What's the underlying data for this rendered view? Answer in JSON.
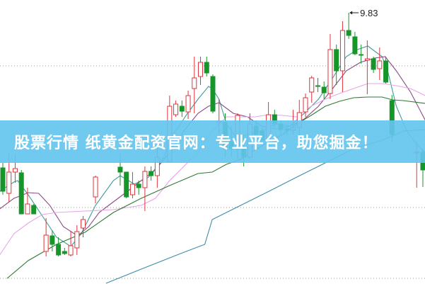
{
  "banner": {
    "text": "股票行情 纸黄金配资官网：专业平台，助您掘金！"
  },
  "chart_data": {
    "type": "candlestick",
    "title": "",
    "xlabel": "",
    "ylabel": "",
    "ylim": [
      6.0,
      10.0
    ],
    "xlim": [
      0,
      68
    ],
    "grid": {
      "horizontal_dotted": true,
      "levels": [
        9.08,
        8.08,
        7.08,
        6.08
      ]
    },
    "high_annotation": {
      "label": "9.83",
      "day": 56,
      "price": 9.83
    },
    "colors": {
      "up": "#e0343a",
      "down": "#16962a",
      "ma5": "#3d9c9a",
      "ma10": "#8c4a86",
      "ma20": "#e6a6e6",
      "ma30": "#2f7a34",
      "ma60": "#3a8cab",
      "grid": "#999999",
      "banner": "#64c4ee"
    },
    "candles_fields": [
      "day",
      "open",
      "high",
      "low",
      "close"
    ],
    "candles": [
      [
        0,
        7.64,
        7.71,
        7.26,
        7.31
      ],
      [
        1,
        7.28,
        7.86,
        7.16,
        7.58
      ],
      [
        2,
        7.58,
        7.83,
        7.43,
        7.63
      ],
      [
        3,
        7.57,
        7.61,
        6.99,
        6.99
      ],
      [
        4,
        6.99,
        7.36,
        6.99,
        7.13
      ],
      [
        5,
        7.11,
        7.13,
        6.99,
        6.99
      ],
      [
        7,
        6.46,
        6.93,
        6.39,
        6.69
      ],
      [
        8,
        6.68,
        6.76,
        6.46,
        6.56
      ],
      [
        9,
        6.56,
        6.66,
        6.39,
        6.41
      ],
      [
        10,
        6.46,
        6.51,
        6.41,
        6.43
      ],
      [
        11,
        6.41,
        6.75,
        6.39,
        6.54
      ],
      [
        12,
        6.51,
        6.83,
        6.41,
        6.74
      ],
      [
        13,
        6.79,
        6.96,
        6.66,
        6.91
      ],
      [
        15,
        7.23,
        7.53,
        7.14,
        7.51
      ],
      [
        19,
        7.65,
        7.84,
        7.39,
        7.58
      ],
      [
        20,
        7.58,
        7.58,
        7.21,
        7.23
      ],
      [
        21,
        7.26,
        7.58,
        7.21,
        7.41
      ],
      [
        22,
        7.41,
        7.46,
        7.26,
        7.36
      ],
      [
        23,
        7.36,
        7.66,
        7.03,
        7.59
      ],
      [
        24,
        7.59,
        7.66,
        7.46,
        7.53
      ],
      [
        25,
        7.53,
        7.96,
        7.36,
        7.79
      ],
      [
        27,
        7.73,
        8.66,
        7.73,
        8.51
      ],
      [
        28,
        8.39,
        8.59,
        8.36,
        8.54
      ],
      [
        29,
        8.51,
        8.59,
        8.36,
        8.44
      ],
      [
        30,
        8.43,
        8.73,
        8.33,
        8.66
      ],
      [
        31,
        8.76,
        9.21,
        8.41,
        8.91
      ],
      [
        32,
        8.93,
        9.21,
        8.81,
        9.13
      ],
      [
        33,
        9.13,
        9.21,
        8.93,
        8.98
      ],
      [
        34,
        8.93,
        8.96,
        8.41,
        8.44
      ],
      [
        35,
        8.28,
        8.61,
        8.11,
        8.3
      ],
      [
        36,
        8.28,
        8.41,
        7.79,
        7.91
      ],
      [
        37,
        8.01,
        8.23,
        7.79,
        7.91
      ],
      [
        38,
        7.91,
        8.41,
        7.76,
        8.38
      ],
      [
        39,
        7.91,
        8.11,
        7.66,
        7.79
      ],
      [
        40,
        7.79,
        8.41,
        7.76,
        8.26
      ],
      [
        41,
        8.23,
        8.31,
        7.91,
        8.11
      ],
      [
        42,
        8.16,
        8.21,
        8.03,
        8.03
      ],
      [
        43,
        7.98,
        8.57,
        7.91,
        8.39
      ],
      [
        44,
        8.39,
        8.46,
        8.21,
        8.26
      ],
      [
        45,
        8.26,
        8.31,
        8.11,
        8.18
      ],
      [
        46,
        8.19,
        8.26,
        8.11,
        8.17
      ],
      [
        47,
        8.17,
        8.46,
        8.11,
        8.21
      ],
      [
        48,
        8.21,
        8.6,
        8.06,
        8.42
      ],
      [
        49,
        8.43,
        8.69,
        8.36,
        8.63
      ],
      [
        50,
        8.71,
        8.94,
        8.56,
        8.91
      ],
      [
        51,
        8.8,
        8.91,
        8.71,
        8.79
      ],
      [
        52,
        8.78,
        8.86,
        8.61,
        8.7
      ],
      [
        53,
        8.69,
        9.53,
        8.61,
        9.31
      ],
      [
        54,
        9.31,
        9.38,
        8.81,
        9.01
      ],
      [
        55,
        9.01,
        9.71,
        8.71,
        9.58
      ],
      [
        56,
        9.58,
        9.83,
        9.46,
        9.51
      ],
      [
        57,
        9.49,
        9.56,
        9.23,
        9.25
      ],
      [
        58,
        9.24,
        9.38,
        9.11,
        9.23
      ],
      [
        59,
        9.16,
        9.44,
        8.68,
        9.18
      ],
      [
        60,
        9.18,
        9.21,
        8.98,
        9.03
      ],
      [
        61,
        9.04,
        9.34,
        8.88,
        9.15
      ],
      [
        62,
        9.15,
        9.21,
        8.83,
        8.85
      ],
      [
        63,
        8.59,
        8.67,
        8.01,
        8.11
      ],
      [
        67,
        7.86,
        8.01,
        7.36,
        7.86
      ],
      [
        68,
        7.86,
        7.91,
        7.37,
        7.61
      ]
    ],
    "moving_averages": [
      {
        "key": "ma5",
        "points": [
          [
            -0.5,
            7.31
          ],
          [
            1.8,
            7.44
          ],
          [
            2.4,
            7.46
          ],
          [
            4.1,
            7.26
          ],
          [
            6.4,
            6.96
          ],
          [
            8.7,
            6.66
          ],
          [
            11.0,
            6.53
          ],
          [
            12.7,
            6.71
          ],
          [
            15.0,
            7.11
          ],
          [
            17.9,
            7.46
          ],
          [
            19.0,
            7.53
          ],
          [
            21.3,
            7.41
          ],
          [
            23.6,
            7.51
          ],
          [
            25.9,
            7.76
          ],
          [
            27.6,
            8.11
          ],
          [
            29.9,
            8.41
          ],
          [
            31.6,
            8.61
          ],
          [
            33.3,
            8.79
          ],
          [
            33.9,
            8.76
          ],
          [
            35.0,
            8.61
          ],
          [
            36.2,
            8.26
          ],
          [
            37.9,
            8.06
          ],
          [
            39.6,
            8.11
          ],
          [
            41.9,
            8.16
          ],
          [
            44.2,
            8.26
          ],
          [
            46.5,
            8.23
          ],
          [
            48.8,
            8.41
          ],
          [
            51.1,
            8.61
          ],
          [
            53.4,
            8.91
          ],
          [
            55.6,
            9.21
          ],
          [
            57.4,
            9.31
          ],
          [
            59.1,
            9.36
          ],
          [
            61.4,
            9.21
          ],
          [
            62.3,
            9.01
          ],
          [
            63.7,
            8.51
          ],
          [
            65.4,
            8.16
          ],
          [
            67.1,
            7.96
          ],
          [
            68.4,
            7.86
          ]
        ]
      },
      {
        "key": "ma10",
        "points": [
          [
            -0.5,
            7.06
          ],
          [
            1.8,
            7.21
          ],
          [
            3.0,
            7.25
          ],
          [
            4.1,
            7.29
          ],
          [
            5.8,
            7.28
          ],
          [
            7.6,
            7.11
          ],
          [
            9.8,
            6.81
          ],
          [
            12.1,
            6.68
          ],
          [
            13.9,
            6.81
          ],
          [
            15.6,
            7.01
          ],
          [
            17.9,
            7.16
          ],
          [
            20.2,
            7.31
          ],
          [
            22.4,
            7.46
          ],
          [
            24.7,
            7.61
          ],
          [
            27.0,
            7.86
          ],
          [
            29.3,
            8.16
          ],
          [
            31.6,
            8.41
          ],
          [
            33.3,
            8.51
          ],
          [
            35.0,
            8.56
          ],
          [
            37.3,
            8.41
          ],
          [
            39.6,
            8.36
          ],
          [
            41.9,
            8.23
          ],
          [
            44.2,
            8.19
          ],
          [
            46.5,
            8.23
          ],
          [
            48.8,
            8.33
          ],
          [
            51.1,
            8.51
          ],
          [
            53.4,
            8.76
          ],
          [
            55.6,
            9.01
          ],
          [
            57.9,
            9.13
          ],
          [
            60.2,
            9.19
          ],
          [
            61.9,
            9.21
          ],
          [
            63.7,
            9.01
          ],
          [
            66.0,
            8.71
          ],
          [
            68.4,
            8.31
          ]
        ]
      },
      {
        "key": "ma20",
        "points": [
          [
            -0.5,
            6.41
          ],
          [
            1.8,
            6.71
          ],
          [
            4.1,
            6.86
          ],
          [
            6.4,
            6.98
          ],
          [
            8.7,
            7.01
          ],
          [
            13.3,
            7.03
          ],
          [
            17.9,
            7.05
          ],
          [
            22.4,
            7.11
          ],
          [
            24.7,
            7.21
          ],
          [
            27.0,
            7.46
          ],
          [
            29.3,
            7.66
          ],
          [
            31.6,
            7.86
          ],
          [
            32.7,
            8.01
          ],
          [
            33.9,
            8.16
          ],
          [
            36.2,
            8.36
          ],
          [
            38.5,
            8.36
          ],
          [
            40.8,
            8.36
          ],
          [
            43.1,
            8.39
          ],
          [
            45.3,
            8.38
          ],
          [
            47.6,
            8.36
          ],
          [
            49.9,
            8.51
          ],
          [
            52.2,
            8.61
          ],
          [
            54.5,
            8.69
          ],
          [
            56.8,
            8.76
          ],
          [
            59.1,
            8.83
          ],
          [
            61.4,
            8.83
          ],
          [
            63.7,
            8.8
          ],
          [
            66.0,
            8.76
          ],
          [
            68.4,
            8.66
          ]
        ]
      },
      {
        "key": "ma30",
        "points": [
          [
            0.7,
            6.08
          ],
          [
            4.1,
            6.33
          ],
          [
            8.7,
            6.56
          ],
          [
            13.3,
            6.73
          ],
          [
            17.9,
            7.01
          ],
          [
            22.4,
            7.21
          ],
          [
            27.0,
            7.39
          ],
          [
            31.6,
            7.56
          ],
          [
            33.9,
            7.58
          ],
          [
            36.2,
            7.69
          ],
          [
            38.5,
            7.76
          ],
          [
            40.8,
            7.89
          ],
          [
            43.1,
            8.01
          ],
          [
            45.3,
            8.11
          ],
          [
            47.6,
            8.26
          ],
          [
            49.9,
            8.38
          ],
          [
            52.2,
            8.51
          ],
          [
            54.5,
            8.58
          ],
          [
            56.8,
            8.63
          ],
          [
            59.1,
            8.64
          ],
          [
            61.4,
            8.64
          ],
          [
            63.1,
            8.6
          ],
          [
            64.8,
            8.59
          ],
          [
            68.4,
            8.55
          ]
        ]
      },
      {
        "key": "ma60",
        "points": [
          [
            16.7,
            6.01
          ],
          [
            22.4,
            6.21
          ],
          [
            28.2,
            6.41
          ],
          [
            32.7,
            6.56
          ],
          [
            33.9,
            6.91
          ],
          [
            38.5,
            7.11
          ],
          [
            43.1,
            7.31
          ],
          [
            47.6,
            7.51
          ],
          [
            52.2,
            7.71
          ],
          [
            56.8,
            7.91
          ],
          [
            61.4,
            8.03
          ],
          [
            64.8,
            8.16
          ],
          [
            68.4,
            8.18
          ]
        ]
      }
    ]
  }
}
